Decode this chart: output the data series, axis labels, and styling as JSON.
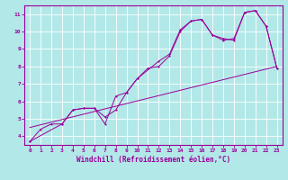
{
  "xlabel": "Windchill (Refroidissement éolien,°C)",
  "bg_color": "#b3e8e8",
  "line_color": "#990099",
  "grid_color": "#ffffff",
  "xlim": [
    -0.5,
    23.5
  ],
  "ylim": [
    3.5,
    11.5
  ],
  "xticks": [
    0,
    1,
    2,
    3,
    4,
    5,
    6,
    7,
    8,
    9,
    10,
    11,
    12,
    13,
    14,
    15,
    16,
    17,
    18,
    19,
    20,
    21,
    22,
    23
  ],
  "yticks": [
    4,
    5,
    6,
    7,
    8,
    9,
    10,
    11
  ],
  "series1_x": [
    0,
    1,
    2,
    3,
    4,
    5,
    6,
    7,
    8,
    9,
    10,
    11,
    12,
    13,
    14,
    15,
    16,
    17,
    18,
    19,
    20,
    21,
    22,
    23
  ],
  "series1_y": [
    3.7,
    4.4,
    4.7,
    4.7,
    5.5,
    5.6,
    5.6,
    5.1,
    5.5,
    6.5,
    7.3,
    7.9,
    8.0,
    8.6,
    10.0,
    10.6,
    10.7,
    9.8,
    9.6,
    9.5,
    11.1,
    11.2,
    10.3,
    7.9
  ],
  "series2_x": [
    0,
    3,
    4,
    5,
    6,
    7,
    8,
    9,
    10,
    12,
    13,
    14,
    15,
    16,
    17,
    18,
    19,
    20,
    21,
    22,
    23
  ],
  "series2_y": [
    3.7,
    4.7,
    5.5,
    5.6,
    5.6,
    4.7,
    6.3,
    6.5,
    7.3,
    8.3,
    8.7,
    10.1,
    10.6,
    10.7,
    9.8,
    9.5,
    9.6,
    11.1,
    11.2,
    10.3,
    7.9
  ],
  "series3_x": [
    0,
    23
  ],
  "series3_y": [
    4.5,
    8.0
  ],
  "tick_fontsize": 4.5,
  "label_fontsize": 5.5
}
